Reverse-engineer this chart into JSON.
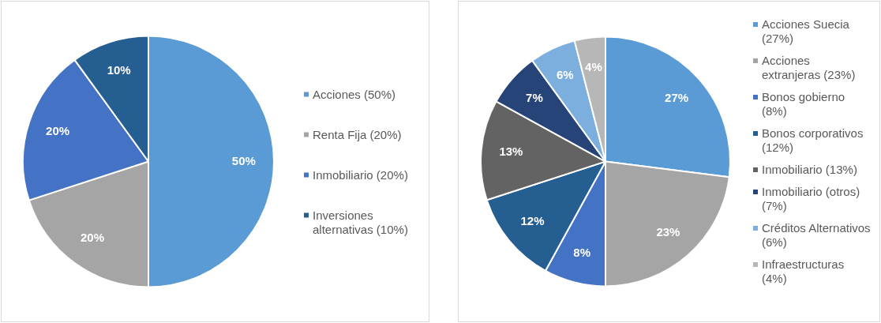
{
  "chart_data": [
    {
      "type": "pie",
      "categories": [
        "Acciones (50%)",
        "Renta Fija (20%)",
        "Inmobiliario (20%)",
        "Inversiones alternativas (10%)"
      ],
      "values": [
        50,
        20,
        20,
        10
      ],
      "colors": [
        "#5b9bd5",
        "#a5a5a5",
        "#4472c4",
        "#255e91"
      ],
      "value_labels": [
        "50%",
        "20%",
        "20%",
        "10%"
      ],
      "legend": "right"
    },
    {
      "type": "pie",
      "categories": [
        "Acciones Suecia (27%)",
        "Acciones extranjeras (23%)",
        "Bonos gobierno (8%)",
        "Bonos corporativos (12%)",
        "Inmobiliario (13%)",
        "Inmobiliario (otros) (7%)",
        "Créditos Alternativos (6%)",
        "Infraestructuras (4%)"
      ],
      "values": [
        27,
        23,
        8,
        12,
        13,
        7,
        6,
        4
      ],
      "colors": [
        "#5b9bd5",
        "#a5a5a5",
        "#4472c4",
        "#255e91",
        "#636363",
        "#264478",
        "#7cafdd",
        "#b7b7b7"
      ],
      "value_labels": [
        "27%",
        "23%",
        "8%",
        "12%",
        "13%",
        "7%",
        "6%",
        "4%"
      ],
      "legend": "right"
    }
  ]
}
